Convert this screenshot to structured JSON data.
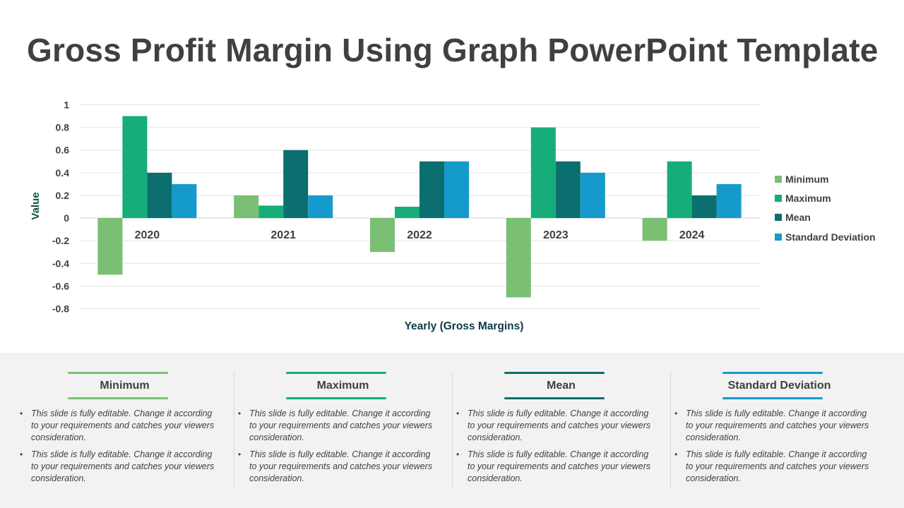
{
  "title": "Gross Profit Margin Using Graph PowerPoint Template",
  "chart_data": {
    "type": "bar",
    "categories": [
      "2020",
      "2021",
      "2022",
      "2023",
      "2024"
    ],
    "series": [
      {
        "name": "Minimum",
        "color": "#7abf73",
        "values": [
          -0.5,
          0.2,
          -0.3,
          -0.7,
          -0.2
        ]
      },
      {
        "name": "Maximum",
        "color": "#16ad78",
        "values": [
          0.9,
          0.11,
          0.1,
          0.8,
          0.5
        ]
      },
      {
        "name": "Mean",
        "color": "#0a6f6e",
        "values": [
          0.4,
          0.6,
          0.5,
          0.5,
          0.2
        ]
      },
      {
        "name": "Standard Deviation",
        "color": "#149bcb",
        "values": [
          0.3,
          0.2,
          0.5,
          0.4,
          0.3
        ]
      }
    ],
    "yticks": [
      "1",
      "0.8",
      "0.6",
      "0.4",
      "0.2",
      "0",
      "-0.2",
      "-0.4",
      "-0.6",
      "-0.8"
    ],
    "ylim": [
      -0.8,
      1
    ],
    "xlabel": "Yearly (Gross Margins)",
    "ylabel": "Value",
    "legend_position": "right",
    "grid": true
  },
  "cards": [
    {
      "title": "Minimum",
      "accent": "#7abf73",
      "bullets": [
        "This slide is fully editable. Change it according to your requirements and catches your viewers consideration.",
        "This slide is fully editable. Change it according to your requirements and catches your viewers consideration."
      ]
    },
    {
      "title": "Maximum",
      "accent": "#16ad78",
      "bullets": [
        "This slide is fully editable. Change it according to your requirements and catches your viewers consideration.",
        "This slide is fully editable. Change it according to your requirements and catches your viewers consideration."
      ]
    },
    {
      "title": "Mean",
      "accent": "#0a6f6e",
      "bullets": [
        "This slide is fully editable. Change it according to your requirements and catches your viewers consideration.",
        "This slide is fully editable. Change it according to your requirements and catches your viewers consideration."
      ]
    },
    {
      "title": "Standard Deviation",
      "accent": "#149bcb",
      "bullets": [
        "This slide is fully editable. Change it according to your requirements and catches your viewers consideration.",
        "This slide is fully editable. Change it according to your requirements and catches your viewers consideration."
      ]
    }
  ]
}
